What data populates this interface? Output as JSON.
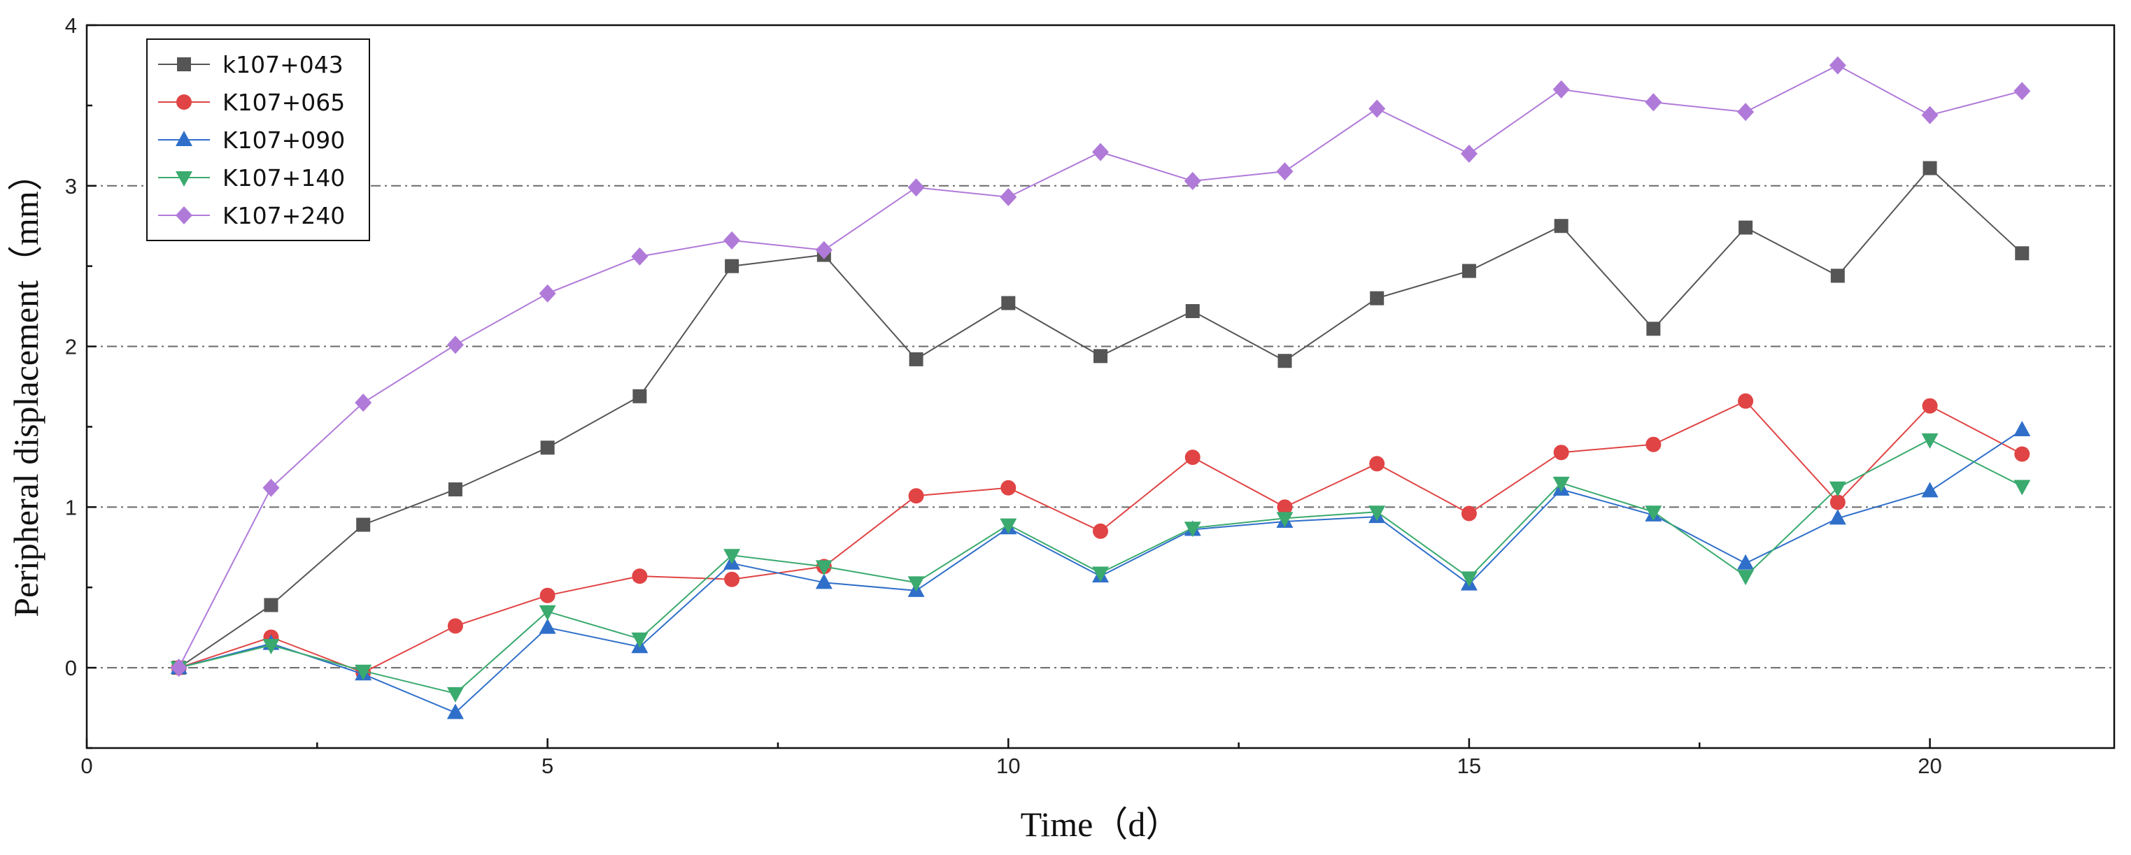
{
  "chart_data": {
    "type": "line",
    "title": "",
    "xlabel": "Time（d）",
    "ylabel": "Peripheral displacement（mm）",
    "xlim": [
      0,
      22
    ],
    "ylim": [
      -0.5,
      4
    ],
    "xticks": [
      0,
      5,
      10,
      15,
      20
    ],
    "yticks": [
      0,
      1,
      2,
      3,
      4
    ],
    "grid": "horizontal dash-dot at y = 0, 1, 2, 3",
    "legend_position": "top-left",
    "x": [
      1,
      2,
      3,
      4,
      5,
      6,
      7,
      8,
      9,
      10,
      11,
      12,
      13,
      14,
      15,
      16,
      17,
      18,
      19,
      20,
      21
    ],
    "series": [
      {
        "name": "k107+043",
        "color": "#555555",
        "marker": "square",
        "values": [
          0.0,
          0.39,
          0.89,
          1.11,
          1.37,
          1.69,
          2.5,
          2.57,
          1.92,
          2.27,
          1.94,
          2.22,
          1.91,
          2.3,
          2.47,
          2.75,
          2.11,
          2.74,
          2.44,
          3.11,
          2.58
        ]
      },
      {
        "name": "K107+065",
        "color": "#e04444",
        "marker": "circle",
        "values": [
          0.0,
          0.19,
          -0.03,
          0.26,
          0.45,
          0.57,
          0.55,
          0.63,
          1.07,
          1.12,
          0.85,
          1.31,
          1.0,
          1.27,
          0.96,
          1.34,
          1.39,
          1.66,
          1.03,
          1.63,
          1.33
        ]
      },
      {
        "name": "K107+090",
        "color": "#2f6fc9",
        "marker": "triangle-up",
        "values": [
          0.0,
          0.15,
          -0.04,
          -0.28,
          0.25,
          0.13,
          0.65,
          0.53,
          0.48,
          0.87,
          0.57,
          0.86,
          0.91,
          0.94,
          0.52,
          1.11,
          0.95,
          0.65,
          0.93,
          1.1,
          1.48
        ]
      },
      {
        "name": "K107+140",
        "color": "#3aaa6e",
        "marker": "triangle-down",
        "values": [
          0.0,
          0.14,
          -0.02,
          -0.16,
          0.35,
          0.18,
          0.7,
          0.63,
          0.53,
          0.89,
          0.59,
          0.87,
          0.93,
          0.97,
          0.56,
          1.15,
          0.97,
          0.57,
          1.12,
          1.42,
          1.13
        ]
      },
      {
        "name": "K107+240",
        "color": "#b07ad9",
        "marker": "diamond",
        "values": [
          0.0,
          1.12,
          1.65,
          2.01,
          2.33,
          2.56,
          2.66,
          2.6,
          2.99,
          2.93,
          3.21,
          3.03,
          3.09,
          3.48,
          3.2,
          3.6,
          3.52,
          3.46,
          3.75,
          3.44,
          3.59
        ]
      }
    ]
  }
}
